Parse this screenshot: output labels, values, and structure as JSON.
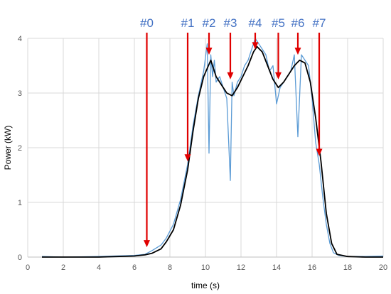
{
  "chart_data": {
    "type": "line",
    "title": "",
    "xlabel": "time (s)",
    "ylabel": "Power (kW)",
    "xlim": [
      0,
      20
    ],
    "ylim": [
      0,
      4
    ],
    "x_ticks": [
      "0",
      "2",
      "4",
      "6",
      "8",
      "10",
      "12",
      "14",
      "16",
      "18",
      "20"
    ],
    "y_ticks": [
      "0",
      "1",
      "2",
      "3",
      "4"
    ],
    "grid": true,
    "colors": {
      "raw": "#5B9BD5",
      "smoothed": "#000000",
      "annotation": "#E00000",
      "annotation_text": "#4472C4",
      "grid": "#D9D9D9"
    },
    "series": [
      {
        "role": "raw",
        "x": [
          0.8,
          2,
          4,
          6,
          6.6,
          7,
          7.5,
          7.8,
          8.2,
          8.6,
          9.0,
          9.3,
          9.6,
          9.9,
          10.1,
          10.2,
          10.3,
          10.4,
          10.5,
          10.6,
          10.8,
          11.0,
          11.2,
          11.4,
          11.5,
          11.6,
          11.8,
          12.0,
          12.2,
          12.4,
          12.6,
          12.8,
          13.0,
          13.2,
          13.4,
          13.6,
          13.8,
          14.0,
          14.2,
          14.4,
          14.6,
          14.8,
          15.0,
          15.2,
          15.4,
          15.6,
          15.8,
          16.0,
          16.2,
          16.4,
          16.6,
          16.8,
          17.0,
          17.2,
          17.5,
          18,
          19,
          20
        ],
        "y": [
          0.01,
          0.0,
          0.01,
          0.03,
          0.05,
          0.12,
          0.22,
          0.35,
          0.6,
          1.05,
          1.7,
          2.4,
          2.95,
          3.4,
          3.9,
          1.9,
          3.7,
          3.3,
          3.6,
          3.2,
          3.3,
          3.1,
          2.9,
          1.4,
          3.2,
          2.95,
          3.2,
          3.3,
          3.5,
          3.6,
          3.8,
          4.0,
          3.9,
          3.8,
          3.7,
          3.4,
          3.5,
          2.8,
          3.1,
          3.2,
          3.3,
          3.4,
          3.7,
          2.2,
          3.7,
          3.6,
          3.5,
          2.9,
          2.1,
          1.7,
          1.1,
          0.6,
          0.25,
          0.08,
          0.03,
          0.01,
          0.01,
          0.02
        ]
      },
      {
        "role": "smoothed",
        "x": [
          0.8,
          2,
          4,
          6,
          6.6,
          7,
          7.5,
          7.8,
          8.2,
          8.6,
          9.0,
          9.3,
          9.6,
          9.9,
          10.1,
          10.3,
          10.6,
          10.9,
          11.2,
          11.5,
          11.8,
          12.1,
          12.4,
          12.7,
          12.9,
          13.2,
          13.5,
          13.8,
          14.1,
          14.4,
          14.7,
          15.0,
          15.3,
          15.6,
          15.9,
          16.2,
          16.5,
          16.8,
          17.1,
          17.4,
          18,
          19,
          20
        ],
        "y": [
          0.0,
          0.0,
          0.0,
          0.02,
          0.04,
          0.07,
          0.15,
          0.28,
          0.5,
          0.95,
          1.6,
          2.3,
          2.9,
          3.3,
          3.45,
          3.6,
          3.3,
          3.15,
          3.0,
          2.95,
          3.1,
          3.3,
          3.5,
          3.75,
          3.85,
          3.75,
          3.5,
          3.25,
          3.1,
          3.2,
          3.35,
          3.5,
          3.6,
          3.55,
          3.2,
          2.55,
          1.75,
          0.8,
          0.25,
          0.05,
          0.01,
          0.0,
          0.0
        ]
      }
    ],
    "annotations": [
      {
        "label": "#0",
        "x": 6.7,
        "y": 0.18
      },
      {
        "label": "#1",
        "x": 9.0,
        "y": 1.75
      },
      {
        "label": "#2",
        "x": 10.2,
        "y": 3.7
      },
      {
        "label": "#3",
        "x": 11.4,
        "y": 3.25
      },
      {
        "label": "#4",
        "x": 12.8,
        "y": 3.8
      },
      {
        "label": "#5",
        "x": 14.1,
        "y": 3.25
      },
      {
        "label": "#6",
        "x": 15.2,
        "y": 3.7
      },
      {
        "label": "#7",
        "x": 16.4,
        "y": 1.85
      }
    ]
  }
}
